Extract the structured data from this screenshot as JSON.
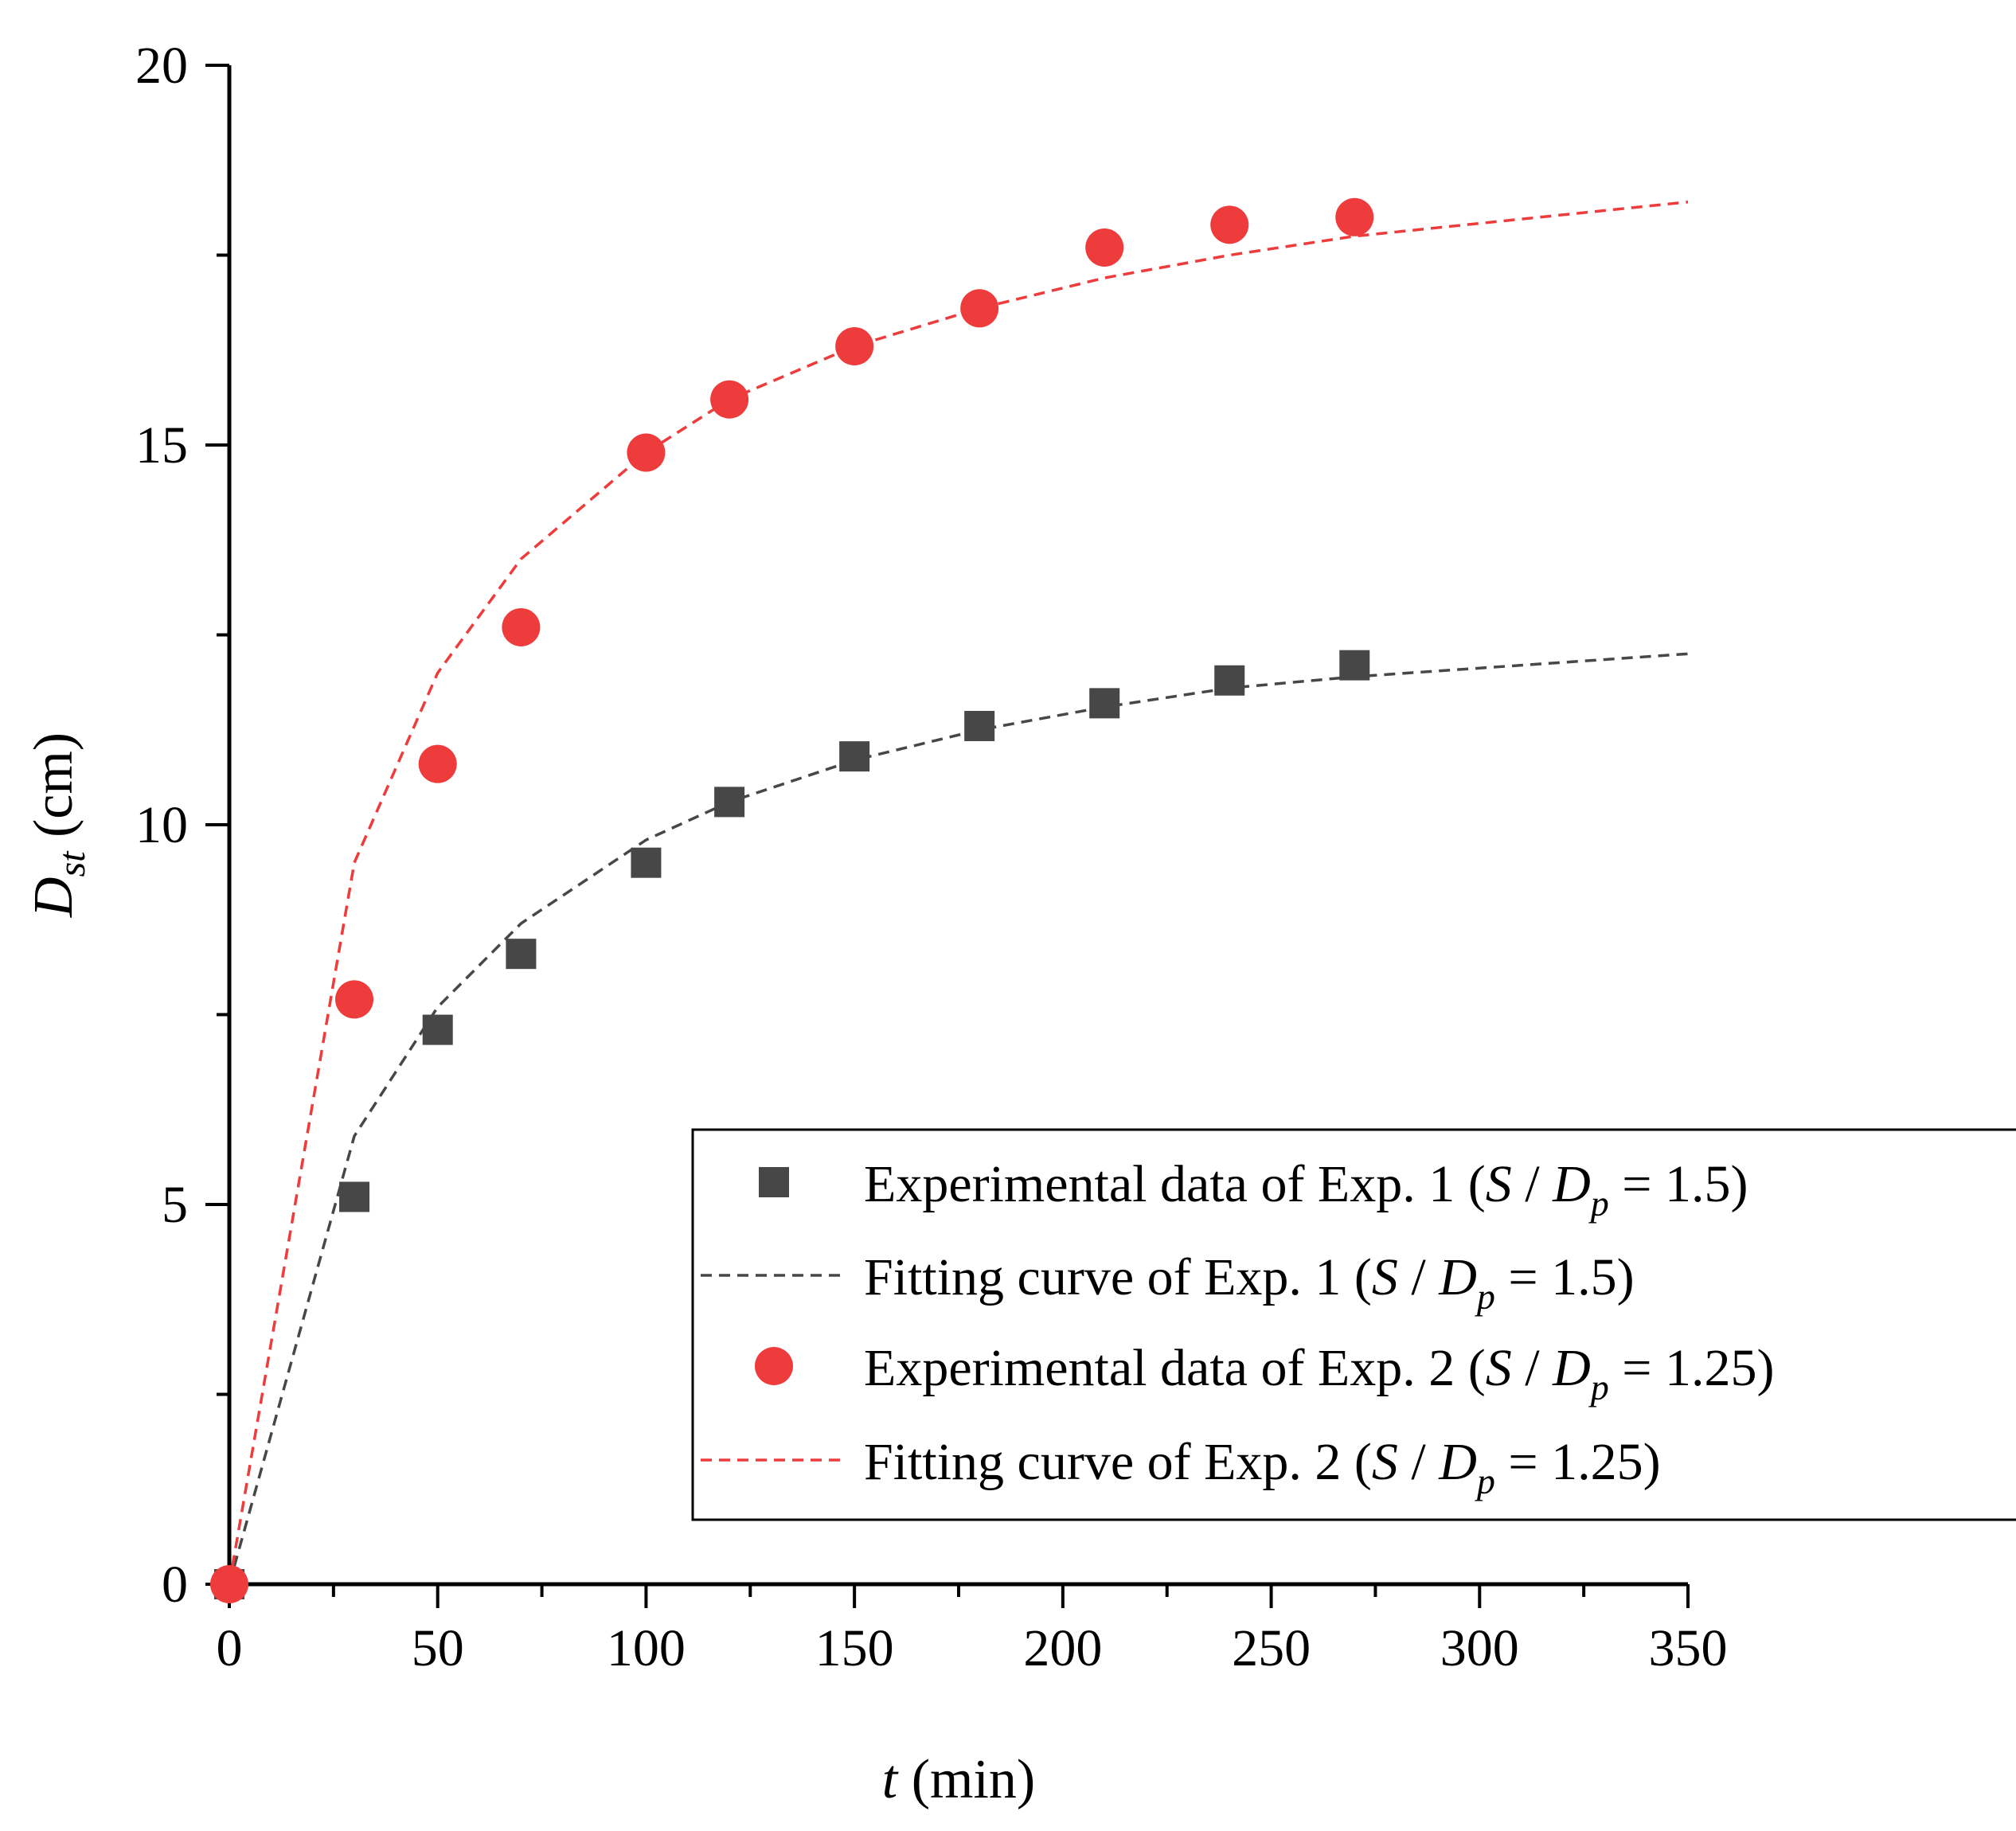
{
  "chart_data": {
    "type": "scatter",
    "xlabel": {
      "italic": "t",
      "rest": " (min)"
    },
    "ylabel": {
      "main": "D",
      "sub": "st",
      "rest": " (cm)"
    },
    "xlim": [
      0,
      350
    ],
    "ylim": [
      0,
      20
    ],
    "xticks": [
      0,
      50,
      100,
      150,
      200,
      250,
      300,
      350
    ],
    "yticks": [
      0,
      5,
      10,
      15,
      20
    ],
    "x_minor_step": 25,
    "y_minor_step": 2.5,
    "grid": false,
    "legend_position": "bottom-right",
    "colors": {
      "exp1": "#474747",
      "exp2": "#ee3b3b",
      "axis": "#000000"
    },
    "series": [
      {
        "name": "Experimental data of Exp. 1 (S / Dp = 1.5)",
        "kind": "points",
        "marker": "square",
        "color": "#474747",
        "x": [
          0,
          30,
          50,
          70,
          100,
          120,
          150,
          180,
          210,
          240,
          270
        ],
        "y": [
          0,
          5.1,
          7.3,
          8.3,
          9.5,
          10.3,
          10.9,
          11.3,
          11.6,
          11.9,
          12.1
        ]
      },
      {
        "name": "Fitting curve of Exp. 1 (S / Dp = 1.5)",
        "kind": "line",
        "dash": "dashed",
        "color": "#474747",
        "x": [
          0,
          30,
          50,
          70,
          100,
          120,
          150,
          180,
          210,
          240,
          270,
          350
        ],
        "y": [
          0,
          5.9,
          7.6,
          8.7,
          9.8,
          10.3,
          10.85,
          11.25,
          11.55,
          11.8,
          11.95,
          12.25
        ]
      },
      {
        "name": "Experimental data of Exp. 2 (S / Dp = 1.25)",
        "kind": "points",
        "marker": "circle",
        "color": "#ee3b3b",
        "x": [
          0,
          30,
          50,
          70,
          100,
          120,
          150,
          180,
          210,
          240,
          270
        ],
        "y": [
          0,
          7.7,
          10.8,
          12.6,
          14.9,
          15.6,
          16.3,
          16.8,
          17.6,
          17.9,
          18.0
        ]
      },
      {
        "name": "Fitting curve of Exp. 2 (S / Dp = 1.25)",
        "kind": "line",
        "dash": "dashed",
        "color": "#ee3b3b",
        "x": [
          0,
          30,
          50,
          70,
          100,
          120,
          150,
          180,
          210,
          240,
          270,
          350
        ],
        "y": [
          0,
          9.5,
          12.0,
          13.5,
          14.9,
          15.6,
          16.3,
          16.8,
          17.2,
          17.5,
          17.75,
          18.2
        ]
      }
    ],
    "legend": [
      {
        "marker": "square",
        "color": "#474747",
        "prefix": "Experimental data of Exp. 1 (",
        "s": "S",
        "slash": " / ",
        "d": "D",
        "sub": "p",
        "suffix": " = 1.5)"
      },
      {
        "marker": "line",
        "color": "#474747",
        "prefix": "Fitting curve of Exp. 1 (",
        "s": "S",
        "slash": " / ",
        "d": "D",
        "sub": "p",
        "suffix": " = 1.5)"
      },
      {
        "marker": "circle",
        "color": "#ee3b3b",
        "prefix": "Experimental data of Exp. 2 (",
        "s": "S",
        "slash": " / ",
        "d": "D",
        "sub": "p",
        "suffix": " = 1.25)"
      },
      {
        "marker": "line",
        "color": "#ee3b3b",
        "prefix": "Fitting curve of Exp. 2 (",
        "s": "S",
        "slash": " / ",
        "d": "D",
        "sub": "p",
        "suffix": " = 1.25)"
      }
    ]
  }
}
